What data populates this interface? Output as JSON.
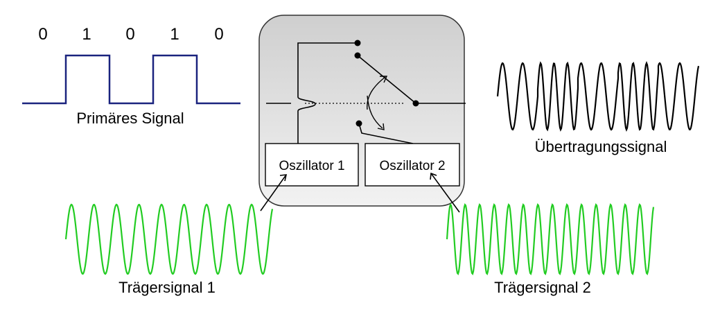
{
  "bits": [
    "0",
    "1",
    "0",
    "1",
    "0"
  ],
  "labels": {
    "primary": "Primäres Signal",
    "output": "Übertragungssignal",
    "carrier1": "Trägersignal 1",
    "carrier2": "Trägersignal 2",
    "osc1": "Oszillator 1",
    "osc2": "Oszillator 2"
  },
  "colors": {
    "digital": "#1a237e",
    "carrier": "#22cc22",
    "output": "#000000",
    "box_light": "#f2f2f2",
    "box_dark": "#bdbdbd"
  }
}
